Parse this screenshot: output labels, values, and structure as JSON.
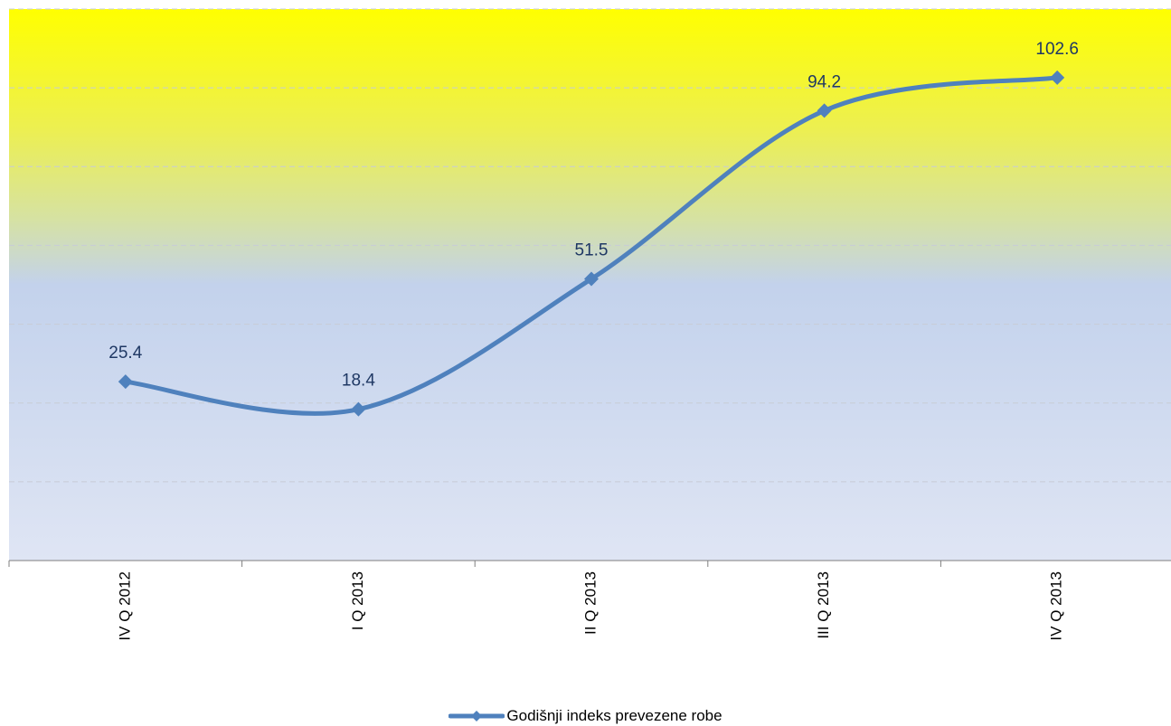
{
  "chart_data": {
    "type": "line",
    "categories": [
      "IV Q 2012",
      "I Q 2013",
      "II Q 2013",
      "III Q 2013",
      "IV Q 2013"
    ],
    "series": [
      {
        "name": "Godišnji indeks prevezene robe",
        "values": [
          25.4,
          18.4,
          51.5,
          94.2,
          102.6
        ]
      }
    ],
    "data_labels": [
      "25.4",
      "18.4",
      "51.5",
      "94.2",
      "102.6"
    ],
    "ylim": [
      -20,
      120
    ],
    "grid": true,
    "legend_position": "bottom",
    "colors": {
      "line": "#4F81BD",
      "label": "#1F3864",
      "background_top": "#FFFF00",
      "background_bottom": "#DCE3F5",
      "grid": "#C8CCD6"
    }
  }
}
